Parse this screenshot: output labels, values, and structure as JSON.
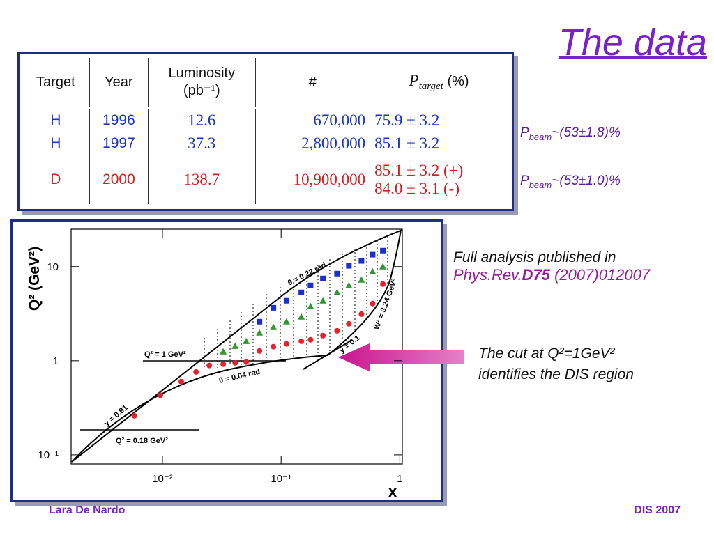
{
  "title": "The data",
  "table": {
    "header": [
      [
        "Target"
      ],
      [
        "Year"
      ],
      [
        "Luminosity",
        "(pb⁻¹)"
      ],
      [
        "#"
      ],
      {
        "symbol": "P",
        "sub": "target",
        "text": " (%)"
      }
    ],
    "rows": [
      [
        "H",
        "1996",
        "12.6",
        "670,000",
        [
          "75.9 ± 3.2"
        ]
      ],
      [
        "H",
        "1997",
        "37.3",
        "2,800,000",
        [
          "85.1 ± 3.2"
        ]
      ],
      [
        "D",
        "2000",
        "138.7",
        "10,900,000",
        [
          "85.1 ± 3.2 (+)",
          "84.0 ± 3.1 (-)"
        ]
      ]
    ]
  },
  "beam_notes": [
    {
      "symbol": "P",
      "sub": "beam",
      "text": "~(53±1.8)%"
    },
    {
      "symbol": "P",
      "sub": "beam",
      "text": "~(53±1.0)%"
    }
  ],
  "publication": {
    "line1": "Full analysis published in",
    "journal": "Phys.Rev.",
    "volume": "D75",
    "ref": " (2007)012007"
  },
  "cut_note": {
    "line1": "The cut at Q²=1GeV²",
    "line2": "identifies the DIS region"
  },
  "chart_data": {
    "type": "scatter",
    "xscale": "log",
    "yscale": "log",
    "xlabel": "x",
    "ylabel": "Q² (GeV²)",
    "xlim": [
      0.0017,
      1.05
    ],
    "ylim": [
      0.08,
      25
    ],
    "xticks": [
      {
        "value": 0.01,
        "label": "10⁻²"
      },
      {
        "value": 0.1,
        "label": "10⁻¹"
      },
      1
    ],
    "yticks": [
      {
        "value": 0.1,
        "label": "10⁻¹"
      },
      1,
      10
    ],
    "series": [
      {
        "color": "#e8202a",
        "marker": "circle",
        "x": [
          0.0058,
          0.0096,
          0.0144,
          0.0192,
          0.0248,
          0.0325,
          0.041,
          0.0508,
          0.0657,
          0.0861,
          0.111,
          0.148,
          0.177,
          0.225,
          0.296,
          0.372,
          0.475,
          0.59,
          0.72
        ],
        "values": [
          0.26,
          0.43,
          0.6,
          0.76,
          0.89,
          0.92,
          0.95,
          0.97,
          1.27,
          1.41,
          1.51,
          1.61,
          1.67,
          1.85,
          2.08,
          2.47,
          3.13,
          4.05,
          6.53
        ]
      },
      {
        "color": "#2f9a2a",
        "marker": "triangle",
        "x": [
          0.0325,
          0.041,
          0.0508,
          0.0657,
          0.0861,
          0.111,
          0.148,
          0.177,
          0.225,
          0.296,
          0.372,
          0.475,
          0.59,
          0.72
        ],
        "values": [
          1.25,
          1.43,
          1.61,
          1.98,
          2.27,
          2.6,
          2.93,
          3.78,
          4.34,
          5.32,
          6.31,
          7.23,
          8.87,
          10
        ]
      },
      {
        "color": "#1a2fd0",
        "marker": "square",
        "x": [
          0.0657,
          0.0861,
          0.111,
          0.148,
          0.177,
          0.225,
          0.296,
          0.372,
          0.475,
          0.59,
          0.72
        ],
        "values": [
          2.6,
          3.65,
          4.34,
          5.32,
          6.31,
          7.48,
          8.43,
          10.2,
          11.5,
          13.4,
          14.8
        ]
      }
    ],
    "annotations": [
      "θ = 0.22 rad",
      "θ = 0.04 rad",
      "Q² = 1 GeV²",
      "Q² = 0.18 GeV²",
      "y = 0.91",
      "y = 0.1",
      "W² = 3.24 GeV²"
    ]
  },
  "footer": {
    "left": "Lara De Nardo",
    "right": "DIS 2007"
  }
}
